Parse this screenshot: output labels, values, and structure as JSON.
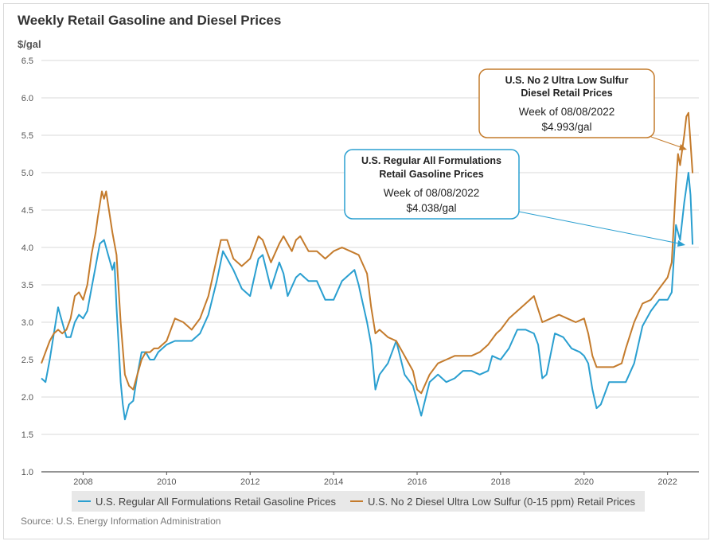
{
  "colors": {
    "gasoline": "#2a9fd0",
    "diesel": "#c47b2c",
    "grid": "#d9d9d9",
    "legend_bg": "#e8e8e8"
  },
  "chart_data": {
    "type": "line",
    "title": "Weekly Retail Gasoline and Diesel Prices",
    "ylabel": "$/gal",
    "source": "Source: U.S. Energy Information Administration",
    "xlim": [
      2007.0,
      2022.75
    ],
    "ylim": [
      1.0,
      6.5
    ],
    "yticks": [
      "1.0",
      "1.5",
      "2.0",
      "2.5",
      "3.0",
      "3.5",
      "4.0",
      "4.5",
      "5.0",
      "5.5",
      "6.0",
      "6.5"
    ],
    "xticks": [
      "2008",
      "2010",
      "2012",
      "2014",
      "2016",
      "2018",
      "2020",
      "2022"
    ],
    "grid": true,
    "legend_position": "bottom",
    "series": [
      {
        "name": "U.S. Regular All Formulations Retail Gasoline Prices",
        "x": [
          2007.0,
          2007.1,
          2007.2,
          2007.3,
          2007.4,
          2007.45,
          2007.5,
          2007.6,
          2007.7,
          2007.8,
          2007.9,
          2008.0,
          2008.1,
          2008.2,
          2008.3,
          2008.4,
          2008.5,
          2008.6,
          2008.7,
          2008.75,
          2008.8,
          2008.9,
          2008.95,
          2009.0,
          2009.1,
          2009.2,
          2009.3,
          2009.4,
          2009.5,
          2009.6,
          2009.7,
          2009.8,
          2009.9,
          2010.0,
          2010.2,
          2010.4,
          2010.6,
          2010.8,
          2011.0,
          2011.2,
          2011.35,
          2011.45,
          2011.6,
          2011.8,
          2012.0,
          2012.2,
          2012.3,
          2012.5,
          2012.7,
          2012.8,
          2012.9,
          2013.1,
          2013.2,
          2013.4,
          2013.6,
          2013.8,
          2014.0,
          2014.2,
          2014.4,
          2014.5,
          2014.6,
          2014.8,
          2014.9,
          2015.0,
          2015.1,
          2015.3,
          2015.5,
          2015.7,
          2015.9,
          2016.0,
          2016.1,
          2016.3,
          2016.5,
          2016.7,
          2016.9,
          2017.1,
          2017.3,
          2017.5,
          2017.7,
          2017.8,
          2018.0,
          2018.2,
          2018.4,
          2018.6,
          2018.8,
          2018.9,
          2019.0,
          2019.1,
          2019.3,
          2019.5,
          2019.7,
          2019.9,
          2020.0,
          2020.1,
          2020.2,
          2020.3,
          2020.4,
          2020.6,
          2020.8,
          2021.0,
          2021.2,
          2021.4,
          2021.6,
          2021.8,
          2022.0,
          2022.1,
          2022.2,
          2022.3,
          2022.4,
          2022.5,
          2022.55,
          2022.6
        ],
        "values": [
          2.25,
          2.2,
          2.5,
          2.85,
          3.2,
          3.1,
          3.0,
          2.8,
          2.8,
          3.0,
          3.1,
          3.05,
          3.15,
          3.45,
          3.75,
          4.05,
          4.1,
          3.9,
          3.7,
          3.8,
          3.2,
          2.2,
          1.9,
          1.7,
          1.9,
          1.95,
          2.3,
          2.6,
          2.6,
          2.5,
          2.5,
          2.6,
          2.65,
          2.7,
          2.75,
          2.75,
          2.75,
          2.85,
          3.1,
          3.55,
          3.95,
          3.85,
          3.7,
          3.45,
          3.35,
          3.85,
          3.9,
          3.45,
          3.8,
          3.65,
          3.35,
          3.6,
          3.65,
          3.55,
          3.55,
          3.3,
          3.3,
          3.55,
          3.65,
          3.7,
          3.5,
          3.0,
          2.7,
          2.1,
          2.3,
          2.45,
          2.75,
          2.3,
          2.15,
          1.95,
          1.75,
          2.2,
          2.3,
          2.2,
          2.25,
          2.35,
          2.35,
          2.3,
          2.35,
          2.55,
          2.5,
          2.65,
          2.9,
          2.9,
          2.85,
          2.7,
          2.25,
          2.3,
          2.85,
          2.8,
          2.65,
          2.6,
          2.55,
          2.45,
          2.1,
          1.85,
          1.9,
          2.2,
          2.2,
          2.2,
          2.45,
          2.95,
          3.15,
          3.3,
          3.3,
          3.4,
          4.3,
          4.1,
          4.6,
          5.0,
          4.7,
          4.038
        ]
      },
      {
        "name": "U.S. No 2 Diesel Ultra Low Sulfur (0-15 ppm) Retail Prices",
        "x": [
          2007.0,
          2007.1,
          2007.2,
          2007.3,
          2007.4,
          2007.5,
          2007.6,
          2007.7,
          2007.8,
          2007.9,
          2008.0,
          2008.1,
          2008.2,
          2008.3,
          2008.35,
          2008.45,
          2008.5,
          2008.55,
          2008.7,
          2008.8,
          2008.9,
          2009.0,
          2009.1,
          2009.2,
          2009.3,
          2009.4,
          2009.5,
          2009.6,
          2009.7,
          2009.8,
          2010.0,
          2010.2,
          2010.4,
          2010.6,
          2010.8,
          2011.0,
          2011.2,
          2011.3,
          2011.45,
          2011.6,
          2011.8,
          2012.0,
          2012.2,
          2012.3,
          2012.5,
          2012.7,
          2012.8,
          2013.0,
          2013.1,
          2013.2,
          2013.4,
          2013.6,
          2013.8,
          2014.0,
          2014.2,
          2014.4,
          2014.6,
          2014.8,
          2014.9,
          2015.0,
          2015.1,
          2015.3,
          2015.5,
          2015.7,
          2015.9,
          2016.0,
          2016.1,
          2016.3,
          2016.5,
          2016.7,
          2016.9,
          2017.1,
          2017.3,
          2017.5,
          2017.7,
          2017.9,
          2018.0,
          2018.2,
          2018.4,
          2018.6,
          2018.8,
          2019.0,
          2019.2,
          2019.4,
          2019.6,
          2019.8,
          2020.0,
          2020.1,
          2020.2,
          2020.3,
          2020.5,
          2020.7,
          2020.9,
          2021.0,
          2021.2,
          2021.4,
          2021.6,
          2021.8,
          2022.0,
          2022.1,
          2022.2,
          2022.25,
          2022.3,
          2022.4,
          2022.45,
          2022.5,
          2022.55,
          2022.6
        ],
        "values": [
          2.45,
          2.6,
          2.75,
          2.85,
          2.9,
          2.85,
          2.9,
          3.05,
          3.35,
          3.4,
          3.3,
          3.5,
          3.9,
          4.2,
          4.4,
          4.75,
          4.65,
          4.75,
          4.2,
          3.9,
          3.0,
          2.3,
          2.15,
          2.1,
          2.3,
          2.5,
          2.6,
          2.6,
          2.65,
          2.65,
          2.75,
          3.05,
          3.0,
          2.9,
          3.05,
          3.35,
          3.85,
          4.1,
          4.1,
          3.85,
          3.75,
          3.85,
          4.15,
          4.1,
          3.8,
          4.05,
          4.15,
          3.95,
          4.1,
          4.15,
          3.95,
          3.95,
          3.85,
          3.95,
          4.0,
          3.95,
          3.9,
          3.65,
          3.2,
          2.85,
          2.9,
          2.8,
          2.75,
          2.55,
          2.35,
          2.1,
          2.05,
          2.3,
          2.45,
          2.5,
          2.55,
          2.55,
          2.55,
          2.6,
          2.7,
          2.85,
          2.9,
          3.05,
          3.15,
          3.25,
          3.35,
          3.0,
          3.05,
          3.1,
          3.05,
          3.0,
          3.05,
          2.85,
          2.55,
          2.4,
          2.4,
          2.4,
          2.45,
          2.65,
          3.0,
          3.25,
          3.3,
          3.45,
          3.6,
          3.8,
          4.85,
          5.25,
          5.1,
          5.5,
          5.75,
          5.8,
          5.4,
          4.993
        ]
      }
    ],
    "annotations": [
      {
        "title1": "U.S. No 2 Ultra Low Sulfur",
        "title2": "Diesel Retail Prices",
        "week": "Week of 08/08/2022",
        "value": "$4.993/gal"
      },
      {
        "title1": "U.S. Regular All Formulations",
        "title2": "Retail Gasoline Prices",
        "week": "Week of 08/08/2022",
        "value": "$4.038/gal"
      }
    ]
  }
}
